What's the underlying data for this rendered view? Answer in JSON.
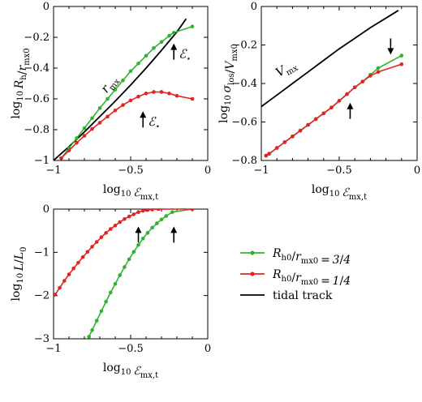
{
  "colors": {
    "green": "#2fb32f",
    "red": "#e02424",
    "black": "#000000"
  },
  "legend": {
    "placement": "bottom-right",
    "entries": [
      {
        "label": "R_h0/r_mx0 = 3/4",
        "color": "#2fb32f",
        "marker": "dot-line"
      },
      {
        "label": "R_h0/r_mx0 = 1/4",
        "color": "#e02424",
        "marker": "dot-line"
      },
      {
        "label": "tidal track",
        "color": "#000000",
        "marker": "line"
      }
    ]
  },
  "chart_data": [
    {
      "type": "line",
      "panel": "top-left",
      "xlabel": "log10 E_mx,t",
      "ylabel": "log10 R_h/r_mx0",
      "xlim": [
        -1,
        0
      ],
      "ylim": [
        -1,
        0
      ],
      "xticks": [
        "-1",
        "-0.5",
        "0"
      ],
      "yticks": [
        "-1",
        "-0.8",
        "-0.6",
        "-0.4",
        "-0.2",
        "0"
      ],
      "grid": false,
      "series": [
        {
          "name": "tidal track",
          "color": "#000000",
          "markers": false,
          "x": [
            -1.0,
            -0.9,
            -0.8,
            -0.7,
            -0.6,
            -0.5,
            -0.4,
            -0.3,
            -0.2,
            -0.14
          ],
          "y": [
            -1.0,
            -0.91,
            -0.815,
            -0.715,
            -0.615,
            -0.51,
            -0.4,
            -0.285,
            -0.165,
            -0.08
          ]
        },
        {
          "name": "R_h0/r_mx0 = 3/4",
          "color": "#2fb32f",
          "markers": true,
          "x": [
            -0.95,
            -0.9,
            -0.85,
            -0.8,
            -0.75,
            -0.7,
            -0.65,
            -0.6,
            -0.55,
            -0.5,
            -0.45,
            -0.4,
            -0.35,
            -0.3,
            -0.25,
            -0.22,
            -0.1
          ],
          "y": [
            -0.985,
            -0.92,
            -0.855,
            -0.79,
            -0.725,
            -0.66,
            -0.6,
            -0.54,
            -0.48,
            -0.42,
            -0.37,
            -0.32,
            -0.27,
            -0.23,
            -0.19,
            -0.17,
            -0.13
          ]
        },
        {
          "name": "R_h0/r_mx0 = 1/4",
          "color": "#e02424",
          "markers": true,
          "x": [
            -0.95,
            -0.9,
            -0.85,
            -0.8,
            -0.75,
            -0.7,
            -0.65,
            -0.6,
            -0.55,
            -0.5,
            -0.45,
            -0.4,
            -0.35,
            -0.3,
            -0.25,
            -0.2,
            -0.1
          ],
          "y": [
            -0.985,
            -0.935,
            -0.885,
            -0.84,
            -0.795,
            -0.755,
            -0.715,
            -0.675,
            -0.64,
            -0.61,
            -0.585,
            -0.565,
            -0.555,
            -0.555,
            -0.565,
            -0.58,
            -0.6
          ]
        }
      ],
      "annotations": [
        {
          "text": "r_mx",
          "kind": "curve-label"
        },
        {
          "text": "E_*",
          "kind": "arrow-up",
          "x": -0.22,
          "y": -0.24
        },
        {
          "text": "E_*",
          "kind": "arrow-up",
          "x": -0.42,
          "y": -0.68
        }
      ]
    },
    {
      "type": "line",
      "panel": "top-right",
      "xlabel": "log10 E_mx,t",
      "ylabel": "log10 σ_los/V_mx0",
      "xlim": [
        -1,
        0
      ],
      "ylim": [
        -0.8,
        0
      ],
      "xticks": [
        "-1",
        "-0.5",
        "0"
      ],
      "yticks": [
        "-0.8",
        "-0.6",
        "-0.4",
        "-0.2",
        "0"
      ],
      "grid": false,
      "series": [
        {
          "name": "tidal track",
          "color": "#000000",
          "markers": false,
          "x": [
            -1.0,
            -0.9,
            -0.8,
            -0.7,
            -0.6,
            -0.5,
            -0.4,
            -0.3,
            -0.2,
            -0.12
          ],
          "y": [
            -0.52,
            -0.46,
            -0.4,
            -0.34,
            -0.28,
            -0.22,
            -0.165,
            -0.11,
            -0.06,
            -0.02
          ]
        },
        {
          "name": "R_h0/r_mx0 = 3/4",
          "color": "#2fb32f",
          "markers": true,
          "x": [
            -0.97,
            -0.95,
            -0.9,
            -0.85,
            -0.8,
            -0.75,
            -0.7,
            -0.65,
            -0.6,
            -0.55,
            -0.5,
            -0.45,
            -0.4,
            -0.35,
            -0.3,
            -0.25,
            -0.1
          ],
          "y": [
            -0.775,
            -0.765,
            -0.735,
            -0.705,
            -0.675,
            -0.645,
            -0.615,
            -0.585,
            -0.555,
            -0.525,
            -0.49,
            -0.455,
            -0.42,
            -0.39,
            -0.355,
            -0.32,
            -0.255
          ]
        },
        {
          "name": "R_h0/r_mx0 = 1/4",
          "color": "#e02424",
          "markers": true,
          "x": [
            -0.97,
            -0.95,
            -0.9,
            -0.85,
            -0.8,
            -0.75,
            -0.7,
            -0.65,
            -0.6,
            -0.55,
            -0.5,
            -0.45,
            -0.4,
            -0.35,
            -0.3,
            -0.25,
            -0.1
          ],
          "y": [
            -0.775,
            -0.765,
            -0.735,
            -0.705,
            -0.675,
            -0.645,
            -0.615,
            -0.585,
            -0.555,
            -0.525,
            -0.49,
            -0.455,
            -0.42,
            -0.39,
            -0.36,
            -0.34,
            -0.3
          ]
        }
      ],
      "annotations": [
        {
          "text": "V_mx",
          "kind": "curve-label"
        },
        {
          "kind": "arrow-down",
          "x": -0.17,
          "y": -0.25
        },
        {
          "kind": "arrow-up",
          "x": -0.43,
          "y": -0.5
        }
      ]
    },
    {
      "type": "line",
      "panel": "bottom-left",
      "xlabel": "log10 E_mx,t",
      "ylabel": "log10 L/L_0",
      "xlim": [
        -1,
        0
      ],
      "ylim": [
        -3,
        0
      ],
      "xticks": [
        "-1",
        "-0.5",
        "0"
      ],
      "yticks": [
        "-3",
        "-2",
        "-1",
        "0"
      ],
      "grid": false,
      "series": [
        {
          "name": "R_h0/r_mx0 = 3/4",
          "color": "#2fb32f",
          "markers": true,
          "x": [
            -0.77,
            -0.75,
            -0.72,
            -0.69,
            -0.66,
            -0.63,
            -0.6,
            -0.57,
            -0.54,
            -0.51,
            -0.48,
            -0.45,
            -0.42,
            -0.39,
            -0.36,
            -0.33,
            -0.3,
            -0.27,
            -0.23,
            -0.1
          ],
          "y": [
            -2.95,
            -2.8,
            -2.58,
            -2.36,
            -2.14,
            -1.93,
            -1.73,
            -1.53,
            -1.34,
            -1.16,
            -0.99,
            -0.83,
            -0.68,
            -0.55,
            -0.43,
            -0.33,
            -0.24,
            -0.16,
            -0.07,
            0.0
          ]
        },
        {
          "name": "R_h0/r_mx0 = 1/4",
          "color": "#e02424",
          "markers": true,
          "x": [
            -0.99,
            -0.96,
            -0.93,
            -0.9,
            -0.87,
            -0.84,
            -0.81,
            -0.78,
            -0.75,
            -0.72,
            -0.69,
            -0.66,
            -0.63,
            -0.6,
            -0.57,
            -0.54,
            -0.51,
            -0.48,
            -0.45,
            -0.42,
            -0.39,
            -0.36,
            -0.32,
            -0.1
          ],
          "y": [
            -1.98,
            -1.82,
            -1.66,
            -1.51,
            -1.37,
            -1.24,
            -1.11,
            -0.99,
            -0.87,
            -0.76,
            -0.65,
            -0.55,
            -0.46,
            -0.38,
            -0.3,
            -0.23,
            -0.17,
            -0.12,
            -0.07,
            -0.04,
            -0.02,
            -0.01,
            0.0,
            0.0
          ]
        }
      ],
      "annotations": [
        {
          "kind": "arrow-up",
          "x": -0.45,
          "y": -0.4
        },
        {
          "kind": "arrow-up",
          "x": -0.22,
          "y": -0.4
        }
      ]
    }
  ]
}
